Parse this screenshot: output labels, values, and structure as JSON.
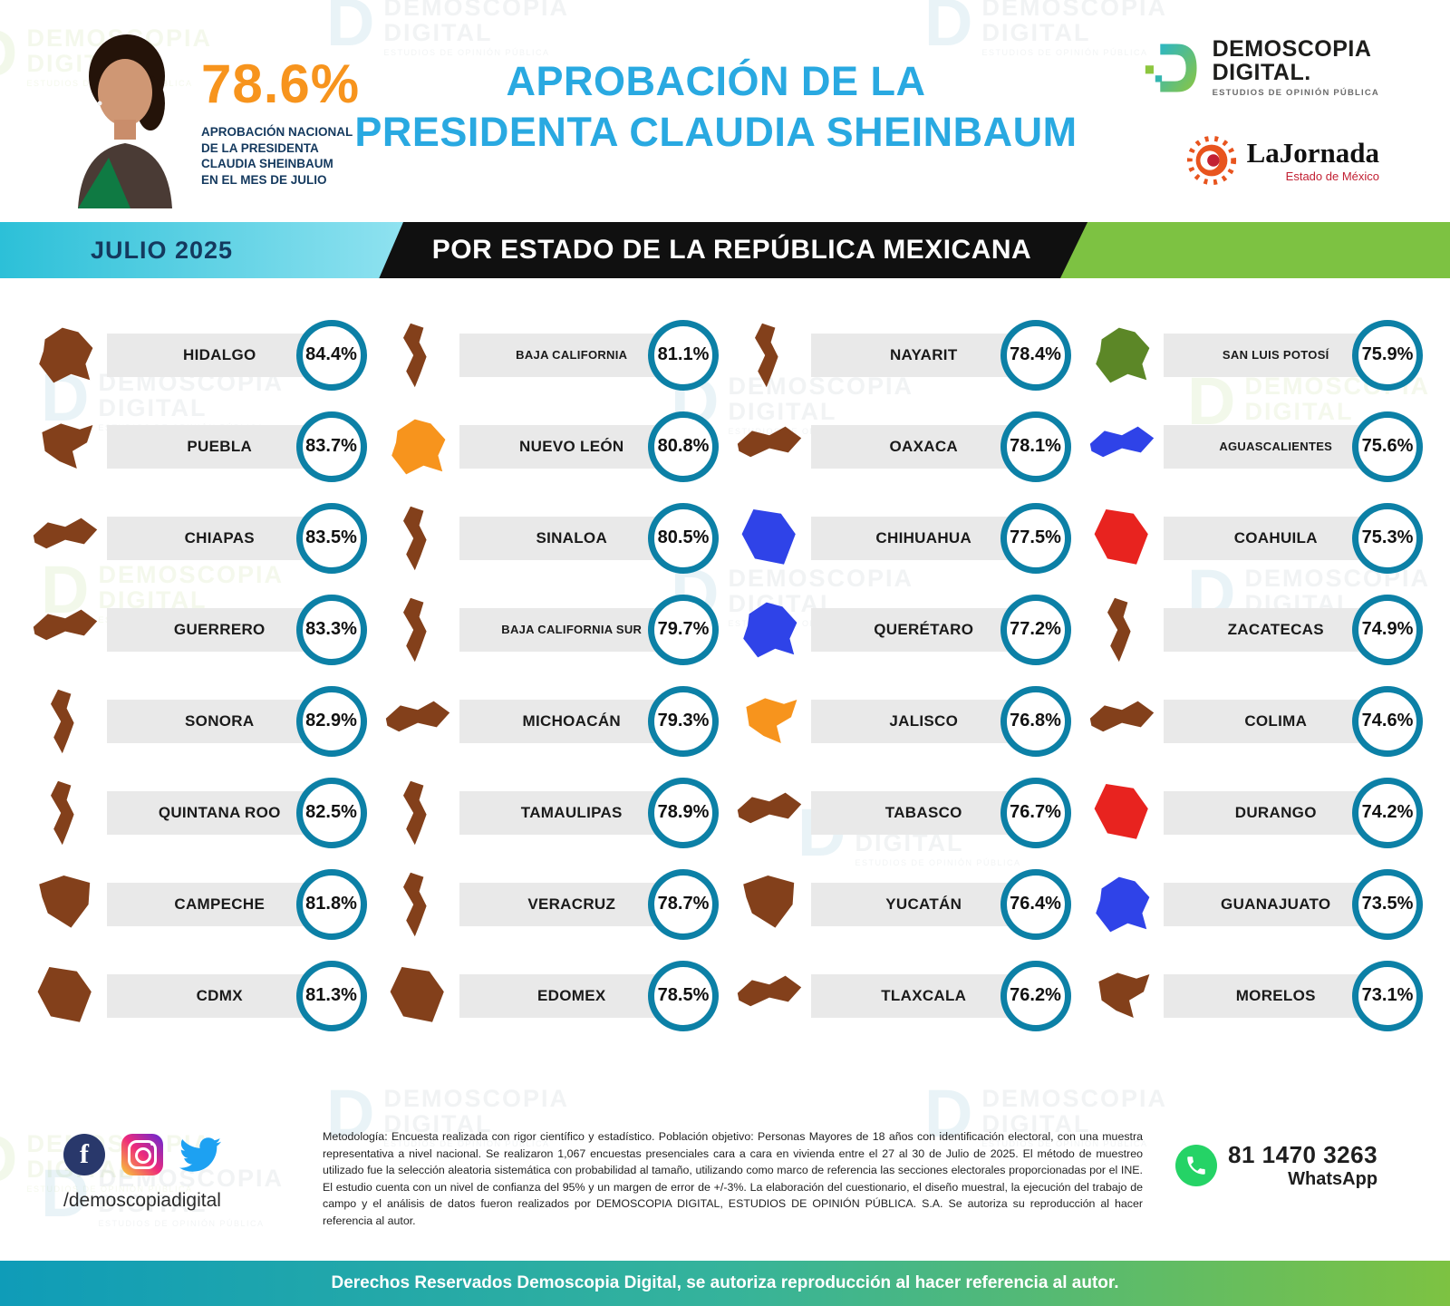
{
  "header": {
    "national": {
      "rate": "78.6%",
      "caption": "APROBACIÓN NACIONAL\nDE LA PRESIDENTA\nCLAUDIA SHEINBAUM\nEN EL MES DE JULIO"
    },
    "title_line1": "APROBACIÓN DE LA",
    "title_line2": "PRESIDENTA CLAUDIA SHEINBAUM",
    "brand": {
      "line1": "DEMOSCOPIA",
      "line2": "DIGITAL.",
      "tagline": "ESTUDIOS DE OPINIÓN PÚBLICA"
    },
    "jornada": {
      "name": "LaJornada",
      "subtitle": "Estado de México"
    }
  },
  "band": {
    "date": "JULIO 2025",
    "title": "POR ESTADO DE LA REPÚBLICA MEXICANA"
  },
  "states": {
    "columns": [
      [
        {
          "name": "HIDALGO",
          "value": "84.4%",
          "color": "#83401b"
        },
        {
          "name": "PUEBLA",
          "value": "83.7%",
          "color": "#83401b"
        },
        {
          "name": "CHIAPAS",
          "value": "83.5%",
          "color": "#83401b"
        },
        {
          "name": "GUERRERO",
          "value": "83.3%",
          "color": "#83401b"
        },
        {
          "name": "SONORA",
          "value": "82.9%",
          "color": "#83401b"
        },
        {
          "name": "QUINTANA ROO",
          "value": "82.5%",
          "color": "#83401b"
        },
        {
          "name": "CAMPECHE",
          "value": "81.8%",
          "color": "#83401b"
        },
        {
          "name": "CDMX",
          "value": "81.3%",
          "color": "#83401b"
        }
      ],
      [
        {
          "name": "BAJA CALIFORNIA",
          "value": "81.1%",
          "color": "#83401b"
        },
        {
          "name": "NUEVO LEÓN",
          "value": "80.8%",
          "color": "#f7941d"
        },
        {
          "name": "SINALOA",
          "value": "80.5%",
          "color": "#83401b"
        },
        {
          "name": "BAJA CALIFORNIA SUR",
          "value": "79.7%",
          "color": "#83401b"
        },
        {
          "name": "MICHOACÁN",
          "value": "79.3%",
          "color": "#83401b"
        },
        {
          "name": "TAMAULIPAS",
          "value": "78.9%",
          "color": "#83401b"
        },
        {
          "name": "VERACRUZ",
          "value": "78.7%",
          "color": "#83401b"
        },
        {
          "name": "EDOMEX",
          "value": "78.5%",
          "color": "#83401b"
        }
      ],
      [
        {
          "name": "NAYARIT",
          "value": "78.4%",
          "color": "#83401b"
        },
        {
          "name": "OAXACA",
          "value": "78.1%",
          "color": "#83401b"
        },
        {
          "name": "CHIHUAHUA",
          "value": "77.5%",
          "color": "#2f43e8"
        },
        {
          "name": "QUERÉTARO",
          "value": "77.2%",
          "color": "#2f43e8"
        },
        {
          "name": "JALISCO",
          "value": "76.8%",
          "color": "#f7941d"
        },
        {
          "name": "TABASCO",
          "value": "76.7%",
          "color": "#83401b"
        },
        {
          "name": "YUCATÁN",
          "value": "76.4%",
          "color": "#83401b"
        },
        {
          "name": "TLAXCALA",
          "value": "76.2%",
          "color": "#83401b"
        }
      ],
      [
        {
          "name": "SAN LUIS POTOSÍ",
          "value": "75.9%",
          "color": "#5c8727"
        },
        {
          "name": "AGUASCALIENTES",
          "value": "75.6%",
          "color": "#2f43e8"
        },
        {
          "name": "COAHUILA",
          "value": "75.3%",
          "color": "#e8231f"
        },
        {
          "name": "ZACATECAS",
          "value": "74.9%",
          "color": "#83401b"
        },
        {
          "name": "COLIMA",
          "value": "74.6%",
          "color": "#83401b"
        },
        {
          "name": "DURANGO",
          "value": "74.2%",
          "color": "#e8231f"
        },
        {
          "name": "GUANAJUATO",
          "value": "73.5%",
          "color": "#2f43e8"
        },
        {
          "name": "MORELOS",
          "value": "73.1%",
          "color": "#83401b"
        }
      ]
    ]
  },
  "footer": {
    "handle": "/demoscopiadigital",
    "methodology": "Metodología: Encuesta realizada con rigor científico y estadístico. Población objetivo: Personas Mayores de 18 años con identificación electoral, con una muestra representativa a nivel nacional. Se realizaron 1,067 encuestas presenciales cara a cara en vivienda entre el 27 al 30 de Julio de 2025. El método de muestreo utilizado fue la selección aleatoria sistemática con probabilidad al tamaño, utilizando como marco de referencia las secciones electorales proporcionadas por el INE. El estudio cuenta con un nivel de confianza del 95% y un margen de error de +/-3%. La elaboración del cuestionario, el diseño muestral, la ejecución del trabajo de campo y el análisis de datos fueron realizados por DEMOSCOPIA DIGITAL, ESTUDIOS DE OPINIÓN PÚBLICA. S.A. Se autoriza su reproducción al hacer referencia al autor.",
    "whatsapp_number": "81 1470 3263",
    "whatsapp_label": "WhatsApp",
    "copyright": "Derechos Reservados Demoscopia Digital, se autoriza reproducción al hacer referencia al autor."
  },
  "watermark": {
    "d": "D",
    "line1": "DEMOSCOPIA",
    "line2": "DIGITAL",
    "line3": "ESTUDIOS DE OPINIÓN PÚBLICA"
  },
  "colors": {
    "accent_teal": "#0c80a6",
    "title_blue": "#29a9e1",
    "orange": "#f7941d",
    "band_green": "#7dc242",
    "brown_state": "#83401b",
    "blue_state": "#2f43e8",
    "red_state": "#e8231f",
    "green_state": "#5c8727"
  },
  "chart_data": {
    "type": "table",
    "title": "Aprobación de la Presidenta Claudia Sheinbaum por Estado de la República Mexicana",
    "period": "Julio 2025",
    "national_approval": 78.6,
    "categories": [
      "Hidalgo",
      "Puebla",
      "Chiapas",
      "Guerrero",
      "Sonora",
      "Quintana Roo",
      "Campeche",
      "CDMX",
      "Baja California",
      "Nuevo León",
      "Sinaloa",
      "Baja California Sur",
      "Michoacán",
      "Tamaulipas",
      "Veracruz",
      "Edomex",
      "Nayarit",
      "Oaxaca",
      "Chihuahua",
      "Querétaro",
      "Jalisco",
      "Tabasco",
      "Yucatán",
      "Tlaxcala",
      "San Luis Potosí",
      "Aguascalientes",
      "Coahuila",
      "Zacatecas",
      "Colima",
      "Durango",
      "Guanajuato",
      "Morelos"
    ],
    "values": [
      84.4,
      83.7,
      83.5,
      83.3,
      82.9,
      82.5,
      81.8,
      81.3,
      81.1,
      80.8,
      80.5,
      79.7,
      79.3,
      78.9,
      78.7,
      78.5,
      78.4,
      78.1,
      77.5,
      77.2,
      76.8,
      76.7,
      76.4,
      76.2,
      75.9,
      75.6,
      75.3,
      74.9,
      74.6,
      74.2,
      73.5,
      73.1
    ],
    "unit": "%"
  }
}
